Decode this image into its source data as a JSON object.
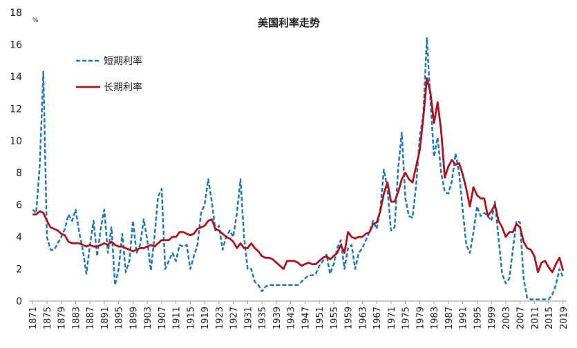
{
  "chart_data": {
    "type": "line",
    "title": "美国利率走势",
    "y_unit": "%",
    "x": [
      1871,
      1872,
      1873,
      1874,
      1875,
      1876,
      1877,
      1878,
      1879,
      1880,
      1881,
      1882,
      1883,
      1884,
      1885,
      1886,
      1887,
      1888,
      1889,
      1890,
      1891,
      1892,
      1893,
      1894,
      1895,
      1896,
      1897,
      1898,
      1899,
      1900,
      1901,
      1902,
      1903,
      1904,
      1905,
      1906,
      1907,
      1908,
      1909,
      1910,
      1911,
      1912,
      1913,
      1914,
      1915,
      1916,
      1917,
      1918,
      1919,
      1920,
      1921,
      1922,
      1923,
      1924,
      1925,
      1926,
      1927,
      1928,
      1929,
      1930,
      1931,
      1932,
      1933,
      1934,
      1935,
      1936,
      1937,
      1938,
      1939,
      1940,
      1941,
      1942,
      1943,
      1944,
      1945,
      1946,
      1947,
      1948,
      1949,
      1950,
      1951,
      1952,
      1953,
      1954,
      1955,
      1956,
      1957,
      1958,
      1959,
      1960,
      1961,
      1962,
      1963,
      1964,
      1965,
      1966,
      1967,
      1968,
      1969,
      1970,
      1971,
      1972,
      1973,
      1974,
      1975,
      1976,
      1977,
      1978,
      1979,
      1980,
      1981,
      1982,
      1983,
      1984,
      1985,
      1986,
      1987,
      1988,
      1989,
      1990,
      1991,
      1992,
      1993,
      1994,
      1995,
      1996,
      1997,
      1998,
      1999,
      2000,
      2001,
      2002,
      2003,
      2004,
      2005,
      2006,
      2007,
      2008,
      2009,
      2010,
      2011,
      2012,
      2013,
      2014,
      2015,
      2016,
      2017,
      2018,
      2019
    ],
    "series": [
      {
        "name": "短期利率",
        "color": "#1f77c4",
        "dash": true,
        "values": [
          5.7,
          5.5,
          8.5,
          14.3,
          4.0,
          3.2,
          3.2,
          3.6,
          4.0,
          4.5,
          5.4,
          5.0,
          5.7,
          4.3,
          3.2,
          1.7,
          3.5,
          5.0,
          2.8,
          4.5,
          5.7,
          3.0,
          4.6,
          1.0,
          2.0,
          4.2,
          1.8,
          2.5,
          5.0,
          3.0,
          3.5,
          5.1,
          3.8,
          1.9,
          4.0,
          6.5,
          7.0,
          2.0,
          2.5,
          3.0,
          2.5,
          3.5,
          3.4,
          3.5,
          2.0,
          2.8,
          3.5,
          5.5,
          6.0,
          7.6,
          6.2,
          4.4,
          4.7,
          3.2,
          4.0,
          4.4,
          4.0,
          5.5,
          7.6,
          4.0,
          2.0,
          2.0,
          1.2,
          1.0,
          0.6,
          0.9,
          1.0,
          1.0,
          1.0,
          1.0,
          1.0,
          1.0,
          1.0,
          1.0,
          1.0,
          1.2,
          1.4,
          1.6,
          1.6,
          1.7,
          2.2,
          2.5,
          2.9,
          1.7,
          2.3,
          3.3,
          3.8,
          2.0,
          3.3,
          3.5,
          2.0,
          3.0,
          3.3,
          3.8,
          4.3,
          5.0,
          4.5,
          5.7,
          8.2,
          7.0,
          4.4,
          4.6,
          8.3,
          10.5,
          6.4,
          5.3,
          5.2,
          7.2,
          10.2,
          11.6,
          16.4,
          12.5,
          9.0,
          10.2,
          8.0,
          6.8,
          6.7,
          7.5,
          9.2,
          8.0,
          5.7,
          3.5,
          3.0,
          4.3,
          5.9,
          5.3,
          5.5,
          5.3,
          5.0,
          6.2,
          3.9,
          1.7,
          1.1,
          1.4,
          3.2,
          5.0,
          4.9,
          1.4,
          0.2,
          0.1,
          0.1,
          0.1,
          0.1,
          0.1,
          0.1,
          0.4,
          1.0,
          2.0,
          1.5
        ]
      },
      {
        "name": "长期利率",
        "color": "#b0121b",
        "dash": false,
        "values": [
          5.4,
          5.4,
          5.6,
          5.5,
          5.0,
          4.6,
          4.5,
          4.4,
          4.2,
          4.1,
          3.7,
          3.6,
          3.6,
          3.6,
          3.5,
          3.4,
          3.5,
          3.4,
          3.4,
          3.5,
          3.6,
          3.5,
          3.7,
          3.5,
          3.4,
          3.4,
          3.3,
          3.2,
          3.1,
          3.2,
          3.3,
          3.3,
          3.4,
          3.5,
          3.4,
          3.6,
          3.8,
          3.8,
          3.8,
          4.0,
          4.0,
          4.3,
          4.3,
          4.2,
          4.1,
          4.2,
          4.5,
          4.6,
          4.7,
          5.0,
          5.1,
          4.5,
          4.4,
          4.2,
          4.0,
          3.9,
          3.7,
          3.3,
          3.6,
          3.3,
          3.3,
          3.6,
          3.3,
          3.1,
          2.8,
          2.7,
          2.7,
          2.6,
          2.4,
          2.2,
          2.0,
          2.5,
          2.5,
          2.5,
          2.4,
          2.2,
          2.3,
          2.4,
          2.3,
          2.3,
          2.5,
          2.7,
          2.8,
          2.6,
          2.8,
          3.0,
          3.5,
          3.0,
          4.3,
          4.0,
          3.9,
          4.0,
          4.0,
          4.2,
          4.3,
          4.8,
          4.9,
          5.6,
          6.7,
          7.4,
          6.2,
          6.2,
          6.8,
          7.6,
          8.0,
          7.6,
          7.4,
          8.4,
          9.4,
          11.4,
          13.9,
          13.0,
          11.1,
          12.4,
          10.6,
          7.7,
          8.4,
          8.8,
          8.5,
          8.6,
          7.9,
          7.0,
          5.9,
          7.1,
          6.6,
          6.4,
          6.4,
          5.3,
          5.6,
          6.0,
          5.0,
          4.6,
          4.0,
          4.3,
          4.3,
          4.8,
          4.6,
          3.7,
          3.3,
          3.2,
          2.8,
          1.8,
          2.4,
          2.5,
          2.1,
          1.8,
          2.3,
          2.7,
          1.9
        ]
      }
    ],
    "xlim": [
      1870,
      2020
    ],
    "xticks": [
      1871,
      1875,
      1879,
      1883,
      1887,
      1891,
      1895,
      1899,
      1903,
      1907,
      1911,
      1915,
      1919,
      1923,
      1927,
      1931,
      1935,
      1939,
      1943,
      1947,
      1951,
      1955,
      1959,
      1963,
      1967,
      1971,
      1975,
      1979,
      1983,
      1987,
      1991,
      1995,
      1999,
      2003,
      2007,
      2011,
      2015,
      2019
    ],
    "ylim": [
      0,
      18
    ],
    "yticks": [
      0,
      2,
      4,
      6,
      8,
      10,
      12,
      14,
      16,
      18
    ],
    "grid": false,
    "legend": "upper left"
  }
}
